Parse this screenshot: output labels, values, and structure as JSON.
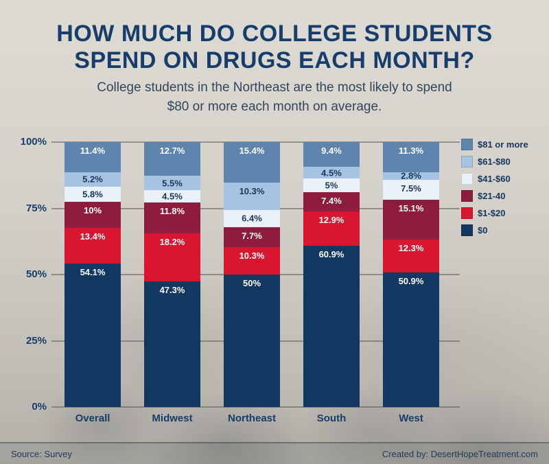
{
  "title": {
    "line1": "HOW MUCH DO COLLEGE STUDENTS",
    "line2": "SPEND ON DRUGS EACH MONTH?"
  },
  "subtitle": {
    "line1": "College students in the Northeast are the most likely to spend",
    "line2": "$80 or more each month on average."
  },
  "footer": {
    "source": "Source: Survey",
    "credit": "Created by: DesertHopeTreatment.com"
  },
  "chart_data": {
    "type": "bar",
    "stacked": true,
    "title": "How much do college students spend on drugs each month?",
    "categories": [
      "Overall",
      "Midwest",
      "Northeast",
      "South",
      "West"
    ],
    "y_ticks": [
      "0%",
      "25%",
      "50%",
      "75%",
      "100%"
    ],
    "ylim": [
      0,
      100
    ],
    "grid": true,
    "legend_position": "top-right",
    "legend": [
      "$81 or more",
      "$61-$80",
      "$41-$60",
      "$21-40",
      "$1-$20",
      "$0"
    ],
    "series": [
      {
        "name": "$0",
        "color": "#123760",
        "label_color": "#ffffff",
        "values": [
          54.1,
          47.3,
          50,
          60.9,
          50.9
        ],
        "labels": [
          "54.1%",
          "47.3%",
          "50%",
          "60.9%",
          "50.9%"
        ]
      },
      {
        "name": "$1-$20",
        "color": "#da1530",
        "label_color": "#ffffff",
        "values": [
          13.4,
          18.2,
          10.3,
          12.9,
          12.3
        ],
        "labels": [
          "13.4%",
          "18.2%",
          "10.3%",
          "12.9%",
          "12.3%"
        ]
      },
      {
        "name": "$21-40",
        "color": "#8e1c3c",
        "label_color": "#ffffff",
        "values": [
          10,
          11.8,
          7.7,
          7.4,
          15.1
        ],
        "labels": [
          "10%",
          "11.8%",
          "7.7%",
          "7.4%",
          "15.1%"
        ]
      },
      {
        "name": "$41-$60",
        "color": "#eaf1f8",
        "label_color": "#16365e",
        "values": [
          5.8,
          4.5,
          6.4,
          5,
          7.5
        ],
        "labels": [
          "5.8%",
          "4.5%",
          "6.4%",
          "5%",
          "7.5%"
        ]
      },
      {
        "name": "$61-$80",
        "color": "#a6c4e2",
        "label_color": "#16365e",
        "values": [
          5.2,
          5.5,
          10.3,
          4.5,
          2.8
        ],
        "labels": [
          "5.2%",
          "5.5%",
          "10.3%",
          "4.5%",
          "2.8%"
        ]
      },
      {
        "name": "$81 or more",
        "color": "#5f85af",
        "label_color": "#ffffff",
        "values": [
          11.4,
          12.7,
          15.4,
          9.4,
          11.3
        ],
        "labels": [
          "11.4%",
          "12.7%",
          "15.4%",
          "9.4%",
          "11.3%"
        ]
      }
    ]
  }
}
